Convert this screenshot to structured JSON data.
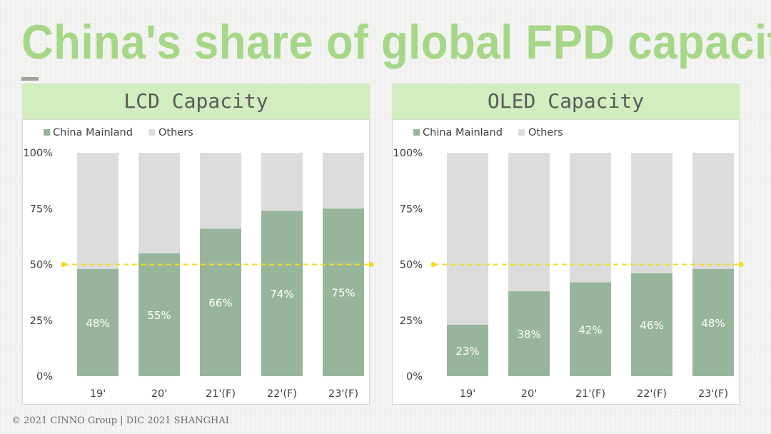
{
  "title": "China's share of global FPD capacity",
  "footer": "© 2021 CINNO Group | DIC 2021 SHANGHAI",
  "colors": {
    "title": "#a6d687",
    "header_bg": "#d2edbf",
    "china": "#97b59a",
    "others": "#dcdcdc",
    "threshold": "#f2dc1c"
  },
  "chart_data": [
    {
      "type": "bar",
      "stacked": true,
      "title": "LCD Capacity",
      "categories": [
        "19'",
        "20'",
        "21'(F)",
        "22'(F)",
        "23'(F)"
      ],
      "series": [
        {
          "name": "China Mainland",
          "values": [
            48,
            55,
            66,
            74,
            75
          ]
        },
        {
          "name": "Others",
          "values": [
            52,
            45,
            34,
            26,
            25
          ]
        }
      ],
      "data_labels": [
        "48%",
        "55%",
        "66%",
        "74%",
        "75%"
      ],
      "yticks": [
        "0%",
        "25%",
        "50%",
        "75%",
        "100%"
      ],
      "ylim": [
        0,
        100
      ],
      "reference_line": 50,
      "legend": "top-left"
    },
    {
      "type": "bar",
      "stacked": true,
      "title": "OLED Capacity",
      "categories": [
        "19'",
        "20'",
        "21'(F)",
        "22'(F)",
        "23'(F)"
      ],
      "series": [
        {
          "name": "China Mainland",
          "values": [
            23,
            38,
            42,
            46,
            48
          ]
        },
        {
          "name": "Others",
          "values": [
            77,
            62,
            58,
            54,
            52
          ]
        }
      ],
      "data_labels": [
        "23%",
        "38%",
        "42%",
        "46%",
        "48%"
      ],
      "yticks": [
        "0%",
        "25%",
        "50%",
        "75%",
        "100%"
      ],
      "ylim": [
        0,
        100
      ],
      "reference_line": 50,
      "legend": "top-left"
    }
  ]
}
